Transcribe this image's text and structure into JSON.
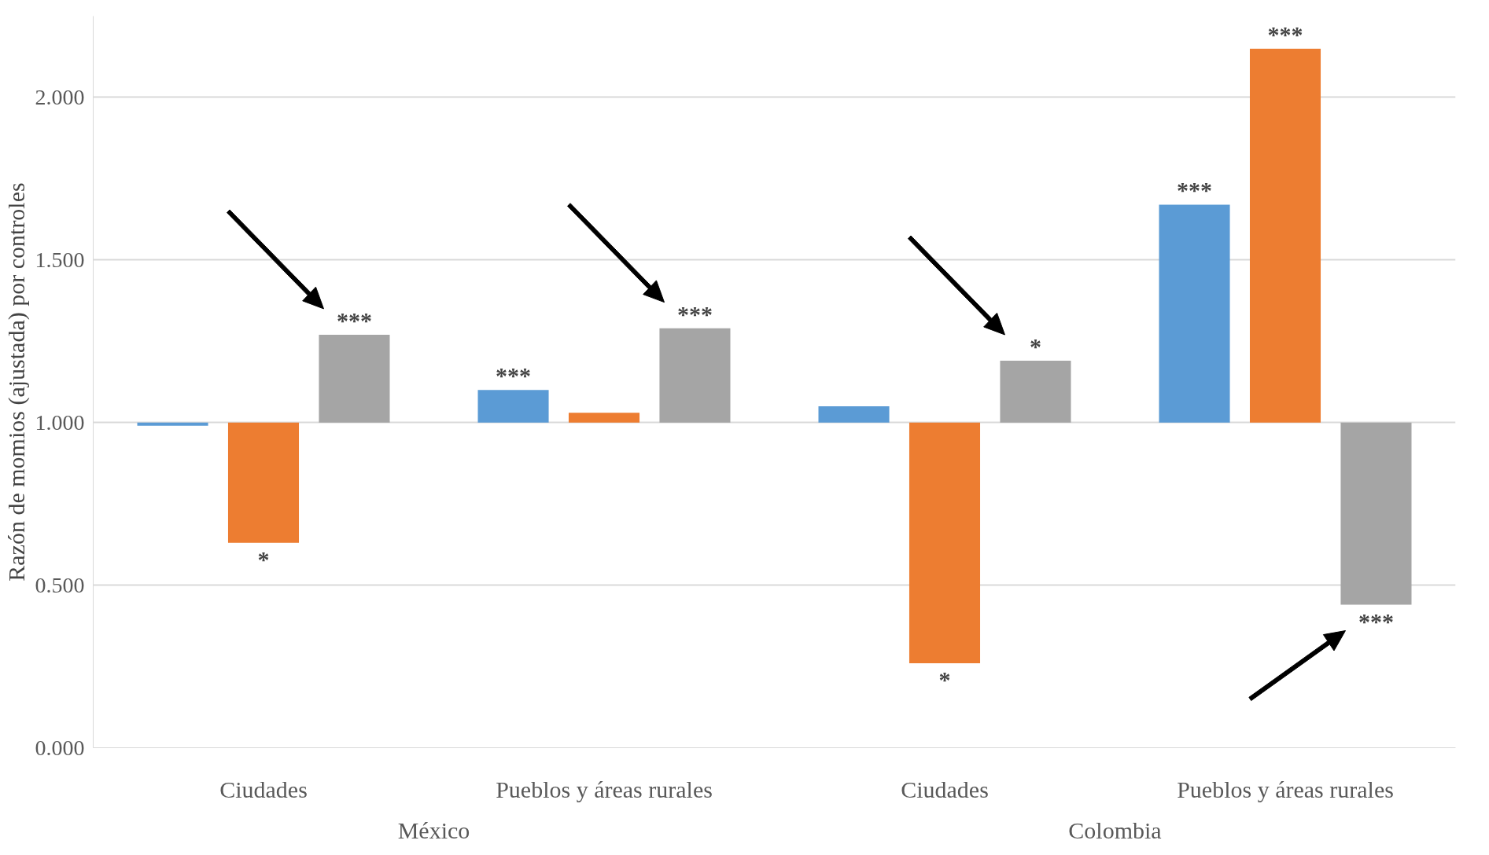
{
  "chart_data": {
    "type": "bar",
    "ylabel": "Razón de momios (ajustada) por controles",
    "categories": [
      "Ciudades",
      "Pueblos y áreas rurales",
      "Ciudades",
      "Pueblos y áreas rurales"
    ],
    "series": [
      {
        "color": "#5b9bd5",
        "base": [
          1,
          1,
          1,
          1
        ],
        "values": [
          -0.01,
          0.1,
          0.05,
          0.67
        ],
        "value_labels": [
          null,
          "***",
          null,
          "***"
        ]
      },
      {
        "color": "#ed7d31",
        "base": [
          1,
          1,
          1,
          1
        ],
        "values": [
          -0.37,
          0.03,
          -0.74,
          1.15
        ],
        "value_labels": [
          "*",
          null,
          "*",
          "***"
        ]
      },
      {
        "color": "#a5a5a5",
        "base": [
          1,
          1,
          1,
          1
        ],
        "values": [
          0.27,
          0.29,
          0.19,
          -0.56
        ],
        "value_labels": [
          "***",
          "***",
          "*",
          "***"
        ]
      }
    ],
    "annotations": [
      "México",
      "Colombia"
    ],
    "ylim": [
      0,
      2.25
    ],
    "yticks": [
      {
        "value": 0,
        "label": "0.000"
      },
      {
        "value": 0.5,
        "label": "0.500"
      },
      {
        "value": 1,
        "label": "1.000"
      },
      {
        "value": 1.5,
        "label": "1.500"
      },
      {
        "value": 2,
        "label": "2.000"
      }
    ],
    "grid": "y"
  }
}
